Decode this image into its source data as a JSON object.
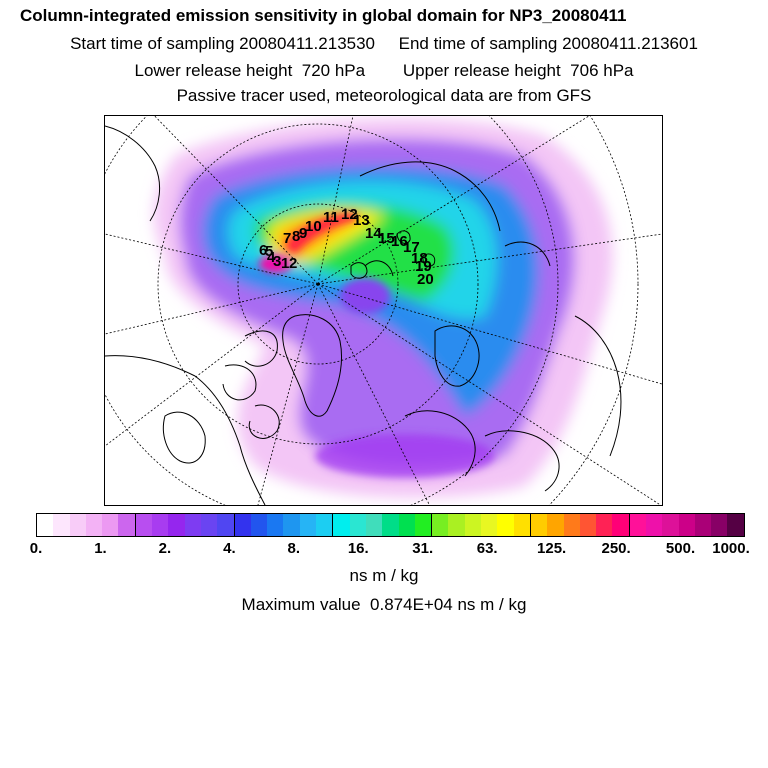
{
  "header": {
    "title": "Column-integrated emission sensitivity in global domain for NP3_20080411",
    "line2": "Start time of sampling 20080411.213530     End time of sampling 20080411.213601",
    "line3": "Lower release height  720 hPa        Upper release height  706 hPa",
    "line4": "Passive tracer used, meteorological data are from GFS"
  },
  "map": {
    "projection": "polar stereographic (north pole)",
    "point_labels": [
      "1",
      "2",
      "3",
      "4",
      "5",
      "6",
      "7",
      "8",
      "9",
      "10",
      "11",
      "12",
      "13",
      "14",
      "15",
      "16",
      "17",
      "18",
      "19",
      "20"
    ]
  },
  "colorbar": {
    "colors": [
      "#ffffff",
      "#fde6fd",
      "#f8ccf8",
      "#f3b2f5",
      "#ec99f2",
      "#cc66ee",
      "#b84ef0",
      "#a83cf0",
      "#9526ee",
      "#7e3cf2",
      "#6a44f2",
      "#5046f2",
      "#3333ee",
      "#2255ee",
      "#1a78f2",
      "#1e96f0",
      "#26b4f5",
      "#1ccef2",
      "#00eeee",
      "#2ae6d2",
      "#40ddbb",
      "#00dd88",
      "#00e050",
      "#22ee22",
      "#77ee22",
      "#aaf022",
      "#ccf522",
      "#e8f722",
      "#ffff00",
      "#ffe000",
      "#ffcc00",
      "#ffa500",
      "#ff7a1a",
      "#ff5533",
      "#ff2255",
      "#ff0077",
      "#ff1199",
      "#ee11aa",
      "#dd1199",
      "#cc0088",
      "#aa0077",
      "#880066",
      "#550044"
    ],
    "dividers_after": [
      5,
      11,
      17,
      23,
      29,
      35
    ],
    "ticks": [
      "0.",
      "1.",
      "2.",
      "4.",
      "8.",
      "16.",
      "31.",
      "63.",
      "125.",
      "250.",
      "500.",
      "1000."
    ],
    "unit": "ns m / kg"
  },
  "max_value": {
    "text": "Maximum value  0.874E+04 ns m / kg"
  }
}
